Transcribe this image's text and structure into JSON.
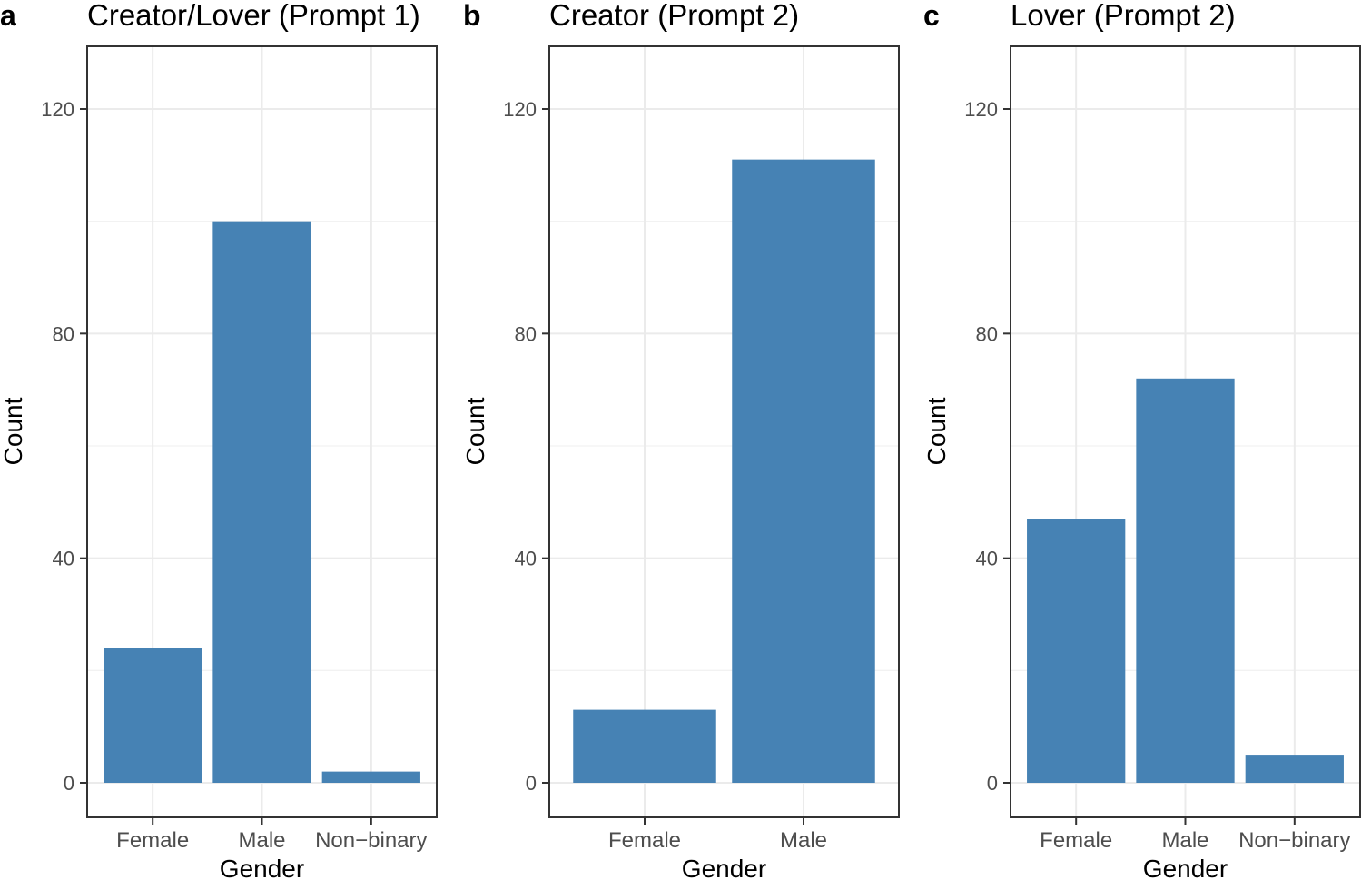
{
  "chart_data": [
    {
      "type": "bar",
      "panel_label": "a",
      "title": "Creator/Lover (Prompt 1)",
      "xlabel": "Gender",
      "ylabel": "Count",
      "categories": [
        "Female",
        "Male",
        "Non−binary"
      ],
      "values": [
        24,
        100,
        2
      ],
      "ylim": [
        0,
        126
      ],
      "yticks": [
        0,
        40,
        80,
        120
      ],
      "ytick_labels": [
        "0",
        "40",
        "80",
        "120"
      ],
      "bar_color": "#4682b4",
      "grid": true
    },
    {
      "type": "bar",
      "panel_label": "b",
      "title": "Creator (Prompt 2)",
      "xlabel": "Gender",
      "ylabel": "Count",
      "categories": [
        "Female",
        "Male"
      ],
      "values": [
        13,
        111
      ],
      "ylim": [
        0,
        126
      ],
      "yticks": [
        0,
        40,
        80,
        120
      ],
      "ytick_labels": [
        "0",
        "40",
        "80",
        "120"
      ],
      "bar_color": "#4682b4",
      "grid": true
    },
    {
      "type": "bar",
      "panel_label": "c",
      "title": "Lover (Prompt 2)",
      "xlabel": "Gender",
      "ylabel": "Count",
      "categories": [
        "Female",
        "Male",
        "Non−binary"
      ],
      "values": [
        47,
        72,
        5
      ],
      "ylim": [
        0,
        126
      ],
      "yticks": [
        0,
        40,
        80,
        120
      ],
      "ytick_labels": [
        "0",
        "40",
        "80",
        "120"
      ],
      "bar_color": "#4682b4",
      "grid": true
    }
  ]
}
